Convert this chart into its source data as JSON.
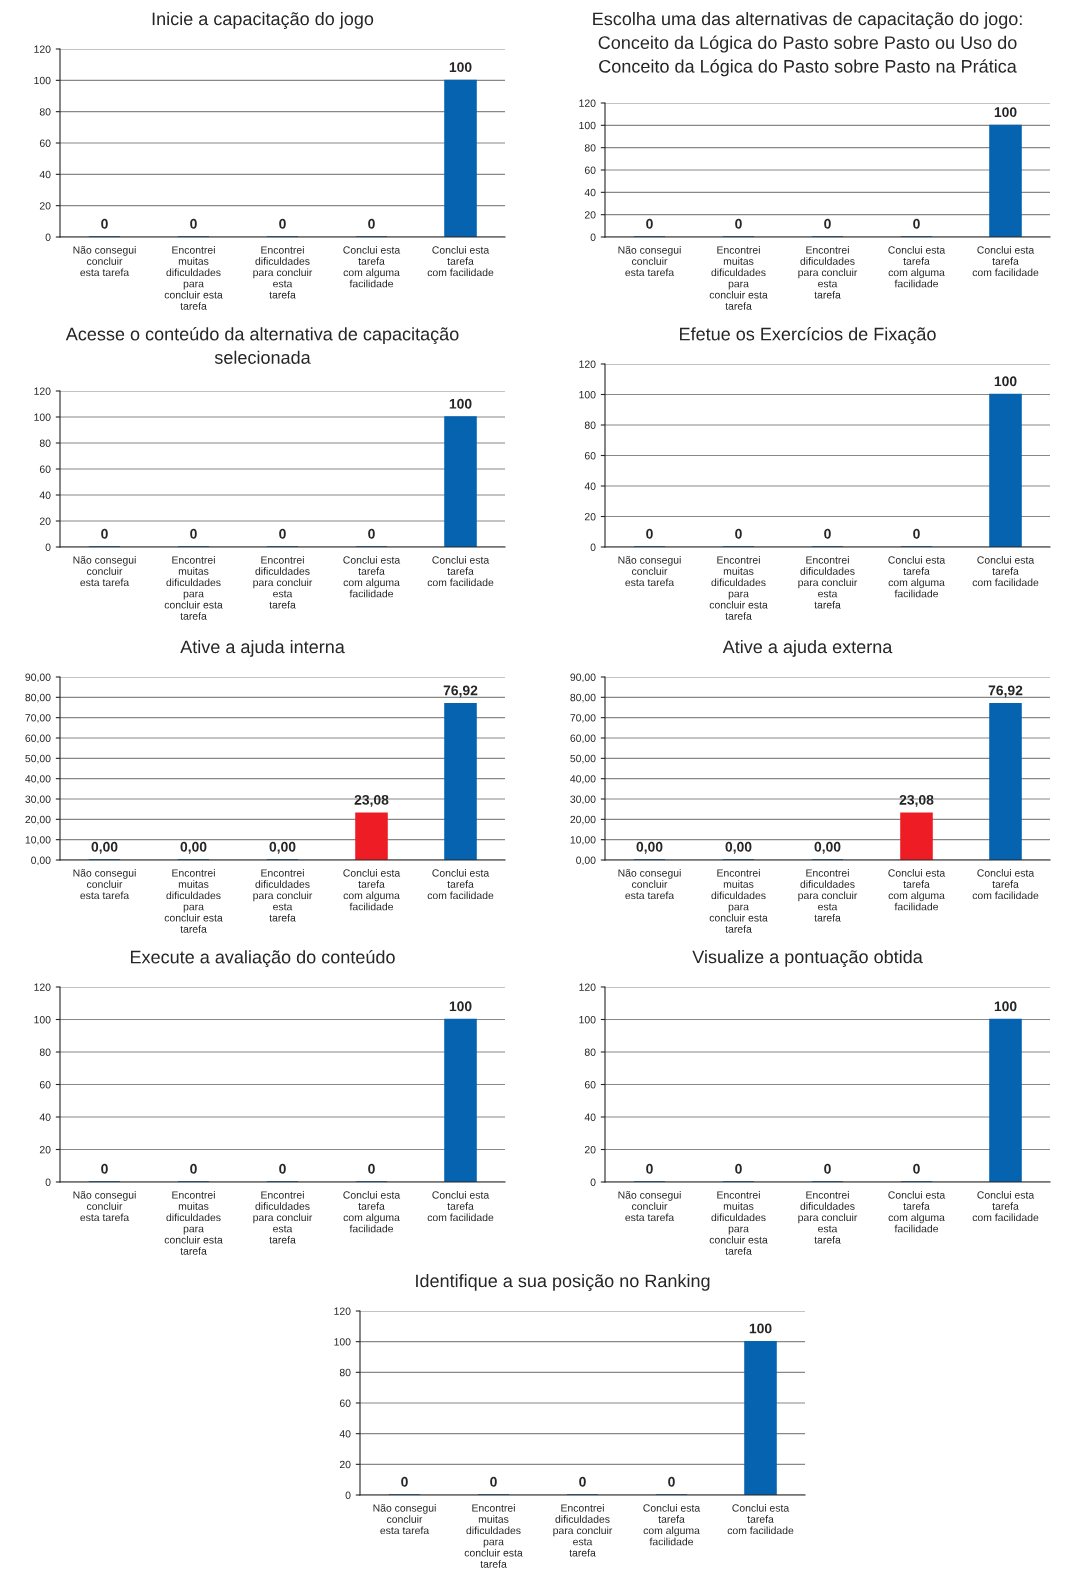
{
  "chart_data": [
    {
      "type": "bar",
      "title": "Inicie a capacitação do jogo",
      "categories": [
        "Não consegui concluir\nesta tarefa",
        "Encontrei muitas\ndificuldades para\nconcluir esta tarefa",
        "Encontrei dificuldades\npara concluir esta\ntarefa",
        "Conclui esta tarefa\ncom alguma facilidade",
        "Conclui esta tarefa\ncom facilidade"
      ],
      "values": [
        0,
        0,
        0,
        0,
        100
      ],
      "colors": [
        "#0563b0",
        "#0563b0",
        "#0563b0",
        "#0563b0",
        "#0563b0"
      ],
      "ylim": [
        0,
        120
      ],
      "yticks": [
        0,
        20,
        40,
        60,
        80,
        100,
        120
      ],
      "grid": "y",
      "data_labels": true
    },
    {
      "type": "bar",
      "title": "Escolha uma das alternativas de capacitação do jogo:\nConceito da Lógica do Pasto sobre Pasto ou Uso do\nConceito da Lógica do Pasto sobre Pasto na Prática",
      "categories": [
        "Não consegui concluir\nesta tarefa",
        "Encontrei muitas\ndificuldades para\nconcluir esta tarefa",
        "Encontrei dificuldades\npara concluir esta\ntarefa",
        "Conclui esta tarefa\ncom alguma facilidade",
        "Conclui esta tarefa\ncom facilidade"
      ],
      "values": [
        0,
        0,
        0,
        0,
        100
      ],
      "colors": [
        "#0563b0",
        "#0563b0",
        "#0563b0",
        "#0563b0",
        "#0563b0"
      ],
      "ylim": [
        0,
        120
      ],
      "yticks": [
        0,
        20,
        40,
        60,
        80,
        100,
        120
      ],
      "grid": "y",
      "data_labels": true
    },
    {
      "type": "bar",
      "title": "Acesse o conteúdo da alternativa de capacitação\nselecionada",
      "categories": [
        "Não consegui concluir\nesta tarefa",
        "Encontrei muitas\ndificuldades para\nconcluir esta tarefa",
        "Encontrei dificuldades\npara concluir esta\ntarefa",
        "Conclui esta tarefa\ncom alguma facilidade",
        "Conclui esta tarefa\ncom facilidade"
      ],
      "values": [
        0,
        0,
        0,
        0,
        100
      ],
      "colors": [
        "#0563b0",
        "#0563b0",
        "#0563b0",
        "#0563b0",
        "#0563b0"
      ],
      "ylim": [
        0,
        120
      ],
      "yticks": [
        0,
        20,
        40,
        60,
        80,
        100,
        120
      ],
      "grid": "y",
      "data_labels": true
    },
    {
      "type": "bar",
      "title": "Efetue os Exercícios de Fixação",
      "categories": [
        "Não consegui concluir\nesta tarefa",
        "Encontrei muitas\ndificuldades para\nconcluir esta tarefa",
        "Encontrei dificuldades\npara concluir esta\ntarefa",
        "Conclui esta tarefa\ncom alguma facilidade",
        "Conclui esta tarefa\ncom facilidade"
      ],
      "values": [
        0,
        0,
        0,
        0,
        100
      ],
      "colors": [
        "#0563b0",
        "#0563b0",
        "#0563b0",
        "#0563b0",
        "#0563b0"
      ],
      "ylim": [
        0,
        120
      ],
      "yticks": [
        0,
        20,
        40,
        60,
        80,
        100,
        120
      ],
      "grid": "y",
      "data_labels": true
    },
    {
      "type": "bar",
      "title": "Ative a ajuda interna",
      "categories": [
        "Não consegui concluir\nesta tarefa",
        "Encontrei muitas\ndificuldades para\nconcluir esta tarefa",
        "Encontrei dificuldades\npara concluir esta\ntarefa",
        "Conclui esta tarefa\ncom alguma facilidade",
        "Conclui esta tarefa\ncom facilidade"
      ],
      "values": [
        0,
        0,
        0,
        23.08,
        76.92
      ],
      "value_labels": [
        "0,00",
        "0,00",
        "0,00",
        "23,08",
        "76,92"
      ],
      "colors": [
        "#0563b0",
        "#0563b0",
        "#0563b0",
        "#ee1c25",
        "#0563b0"
      ],
      "ylim": [
        0,
        90
      ],
      "yticks": [
        {
          "value": 0,
          "label": "0,00"
        },
        {
          "value": 10,
          "label": "10,00"
        },
        {
          "value": 20,
          "label": "20,00"
        },
        {
          "value": 30,
          "label": "30,00"
        },
        {
          "value": 40,
          "label": "40,00"
        },
        {
          "value": 50,
          "label": "50,00"
        },
        {
          "value": 60,
          "label": "60,00"
        },
        {
          "value": 70,
          "label": "70,00"
        },
        {
          "value": 80,
          "label": "80,00"
        },
        {
          "value": 90,
          "label": "90,00"
        }
      ],
      "grid": "y"
    },
    {
      "type": "bar",
      "title": "Ative a ajuda externa",
      "categories": [
        "Não consegui concluir\nesta tarefa",
        "Encontrei muitas\ndificuldades para\nconcluir esta tarefa",
        "Encontrei dificuldades\npara concluir esta\ntarefa",
        "Conclui esta tarefa\ncom alguma facilidade",
        "Conclui esta tarefa\ncom facilidade"
      ],
      "values": [
        0,
        0,
        0,
        23.08,
        76.92
      ],
      "value_labels": [
        "0,00",
        "0,00",
        "0,00",
        "23,08",
        "76,92"
      ],
      "colors": [
        "#0563b0",
        "#0563b0",
        "#0563b0",
        "#ee1c25",
        "#0563b0"
      ],
      "ylim": [
        0,
        90
      ],
      "yticks": [
        {
          "value": 0,
          "label": "0,00"
        },
        {
          "value": 10,
          "label": "10,00"
        },
        {
          "value": 20,
          "label": "20,00"
        },
        {
          "value": 30,
          "label": "30,00"
        },
        {
          "value": 40,
          "label": "40,00"
        },
        {
          "value": 50,
          "label": "50,00"
        },
        {
          "value": 60,
          "label": "60,00"
        },
        {
          "value": 70,
          "label": "70,00"
        },
        {
          "value": 80,
          "label": "80,00"
        },
        {
          "value": 90,
          "label": "90,00"
        }
      ],
      "grid": "y"
    },
    {
      "type": "bar",
      "title": "Execute a avaliação do conteúdo",
      "categories": [
        "Não consegui concluir\nesta tarefa",
        "Encontrei muitas\ndificuldades para\nconcluir esta tarefa",
        "Encontrei dificuldades\npara concluir esta\ntarefa",
        "Conclui esta tarefa\ncom alguma facilidade",
        "Conclui esta tarefa\ncom facilidade"
      ],
      "values": [
        0,
        0,
        0,
        0,
        100
      ],
      "colors": [
        "#0563b0",
        "#0563b0",
        "#0563b0",
        "#0563b0",
        "#0563b0"
      ],
      "ylim": [
        0,
        120
      ],
      "yticks": [
        0,
        20,
        40,
        60,
        80,
        100,
        120
      ],
      "grid": "y",
      "data_labels": true
    },
    {
      "type": "bar",
      "title": "Visualize a pontuação obtida",
      "categories": [
        "Não consegui concluir\nesta tarefa",
        "Encontrei muitas\ndificuldades para\nconcluir esta tarefa",
        "Encontrei dificuldades\npara concluir esta\ntarefa",
        "Conclui esta tarefa\ncom alguma facilidade",
        "Conclui esta tarefa\ncom facilidade"
      ],
      "values": [
        0,
        0,
        0,
        0,
        100
      ],
      "colors": [
        "#0563b0",
        "#0563b0",
        "#0563b0",
        "#0563b0",
        "#0563b0"
      ],
      "ylim": [
        0,
        120
      ],
      "yticks": [
        0,
        20,
        40,
        60,
        80,
        100,
        120
      ],
      "grid": "y",
      "data_labels": true
    },
    {
      "type": "bar",
      "title": "Identifique a sua posição no Ranking",
      "categories": [
        "Não consegui concluir\nesta tarefa",
        "Encontrei muitas\ndificuldades para\nconcluir esta tarefa",
        "Encontrei dificuldades\npara concluir esta\ntarefa",
        "Conclui esta tarefa\ncom alguma facilidade",
        "Conclui esta tarefa\ncom facilidade"
      ],
      "values": [
        0,
        0,
        0,
        0,
        100
      ],
      "colors": [
        "#0563b0",
        "#0563b0",
        "#0563b0",
        "#0563b0",
        "#0563b0"
      ],
      "ylim": [
        0,
        120
      ],
      "yticks": [
        0,
        20,
        40,
        60,
        80,
        100,
        120
      ],
      "grid": "y",
      "data_labels": true
    }
  ]
}
